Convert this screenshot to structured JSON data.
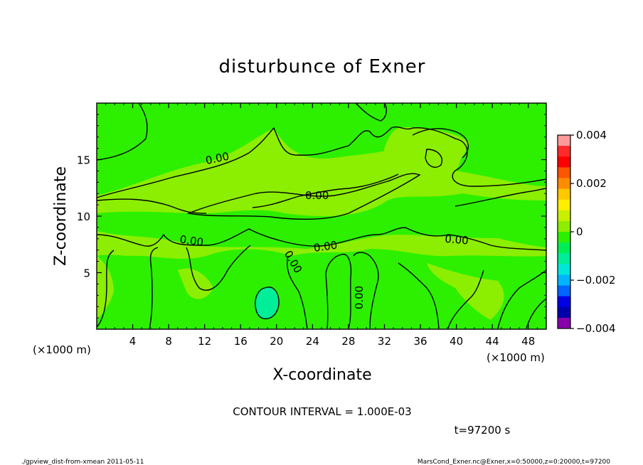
{
  "chart_data": {
    "type": "heatmap",
    "title": "disturbunce of Exner",
    "xlabel": "X-coordinate",
    "ylabel": "Z-coordinate",
    "xunit": "(×1000 m)",
    "xunit_right": "(×1000 m)",
    "xlim": [
      0,
      50
    ],
    "ylim": [
      0,
      20
    ],
    "xticks": [
      4,
      8,
      12,
      16,
      20,
      24,
      28,
      32,
      36,
      40,
      44,
      48
    ],
    "yticks": [
      5,
      10,
      15
    ],
    "colorbar": {
      "ticks": [
        0.004,
        0.002,
        0,
        -0.002,
        -0.004
      ],
      "tick_labels": [
        "0.004",
        "0.002",
        "0",
        "−0.002",
        "−0.004"
      ],
      "range": [
        -0.004,
        0.004
      ],
      "colors": [
        "#ff9a9a",
        "#ff2a2a",
        "#ff0000",
        "#ff5500",
        "#ff8c00",
        "#ffc800",
        "#ffee00",
        "#c8f000",
        "#8cee00",
        "#2cf000",
        "#00ee55",
        "#00ee99",
        "#00e6d8",
        "#00b4ff",
        "#0064ff",
        "#0000e6",
        "#0000aa",
        "#8800aa"
      ]
    },
    "field_colors": {
      "background": "#2cf000",
      "near_zero_band": "#8cee00",
      "negative_patch": "#00ee99"
    },
    "contour_labels": [
      {
        "text": "0.00",
        "x": 13.5,
        "z": 14.8,
        "rotate": -12
      },
      {
        "text": "0.00",
        "x": 24.5,
        "z": 11.5,
        "rotate": 0
      },
      {
        "text": "0.00",
        "x": 10.5,
        "z": 7.5,
        "rotate": 8
      },
      {
        "text": "0.00",
        "x": 25.5,
        "z": 7.0,
        "rotate": -8
      },
      {
        "text": "0.00",
        "x": 40.0,
        "z": 7.6,
        "rotate": 5
      },
      {
        "text": "0.00",
        "x": 21.5,
        "z": 5.8,
        "rotate": 60
      },
      {
        "text": "0.00",
        "x": 29.6,
        "z": 2.8,
        "rotate": -90
      }
    ],
    "contour_interval": "CONTOUR INTERVAL = 1.000E-03",
    "time": "t=97200 s",
    "footer_left": "./gpview_dist-from-xmean  2011-05-11",
    "footer_right": "MarsCond_Exner.nc@Exner,x=0:50000,z=0:20000,t=97200"
  }
}
